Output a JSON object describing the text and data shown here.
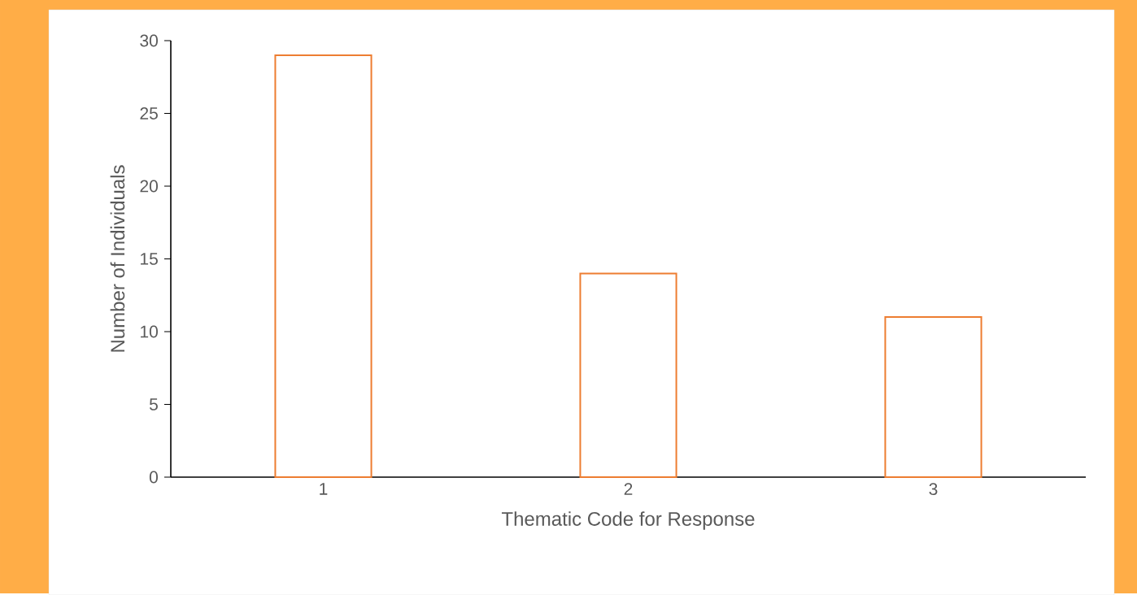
{
  "chart_data": {
    "type": "bar",
    "xlabel": "Thematic Code for Response",
    "ylabel": "Number of Individuals",
    "categories": [
      "1",
      "2",
      "3"
    ],
    "values": [
      29,
      14,
      11
    ],
    "color": "#ed7d31",
    "ylim": [
      0,
      30
    ],
    "yticks": [
      0,
      5,
      10,
      15,
      20,
      25,
      30
    ]
  }
}
